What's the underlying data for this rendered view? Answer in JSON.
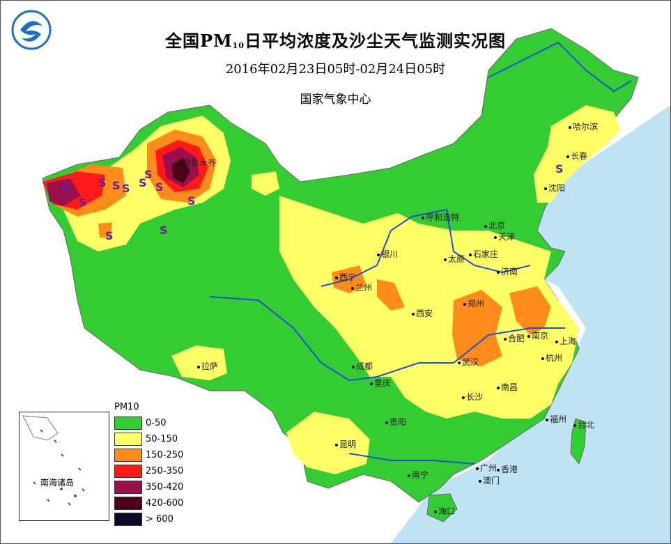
{
  "title": {
    "prefix": "全国PM",
    "sub": "10",
    "suffix": "日平均浓度及沙尘天气监测实况图",
    "time_range": "2016年02月23日05时-02月24日05时",
    "org": "国家气象中心"
  },
  "logo": {
    "icon": "cma-logo-icon"
  },
  "cities": [
    {
      "name": "哈尔滨"
    },
    {
      "name": "长春"
    },
    {
      "name": "沈阳"
    },
    {
      "name": "乌鲁木齐"
    },
    {
      "name": "呼和浩特"
    },
    {
      "name": "北京"
    },
    {
      "name": "天津"
    },
    {
      "name": "银川"
    },
    {
      "name": "太原"
    },
    {
      "name": "石家庄"
    },
    {
      "name": "济南"
    },
    {
      "name": "西宁"
    },
    {
      "name": "兰州"
    },
    {
      "name": "郑州"
    },
    {
      "name": "西安"
    },
    {
      "name": "合肥"
    },
    {
      "name": "南京"
    },
    {
      "name": "上海"
    },
    {
      "name": "武汉"
    },
    {
      "name": "杭州"
    },
    {
      "name": "成都"
    },
    {
      "name": "重庆"
    },
    {
      "name": "拉萨"
    },
    {
      "name": "南昌"
    },
    {
      "name": "长沙"
    },
    {
      "name": "贵阳"
    },
    {
      "name": "福州"
    },
    {
      "name": "台北"
    },
    {
      "name": "昆明"
    },
    {
      "name": "南宁"
    },
    {
      "name": "广州"
    },
    {
      "name": "香港"
    },
    {
      "name": "澳门"
    },
    {
      "name": "海口"
    }
  ],
  "dust_marker": "S",
  "legend": {
    "title": "PM10",
    "items": [
      {
        "label": "0-50",
        "color": "#33cc33"
      },
      {
        "label": "50-150",
        "color": "#ffff66"
      },
      {
        "label": "150-250",
        "color": "#ff8c1a"
      },
      {
        "label": "250-350",
        "color": "#ff1a1a"
      },
      {
        "label": "350-420",
        "color": "#99104d"
      },
      {
        "label": "420-600",
        "color": "#4d0019"
      },
      {
        "label": "> 600",
        "color": "#0a0a26"
      }
    ]
  },
  "inset": {
    "label": "南海诸岛"
  },
  "colors": {
    "sea": "#bfe3f5",
    "river": "#1f4fd6",
    "border": "#666666"
  }
}
